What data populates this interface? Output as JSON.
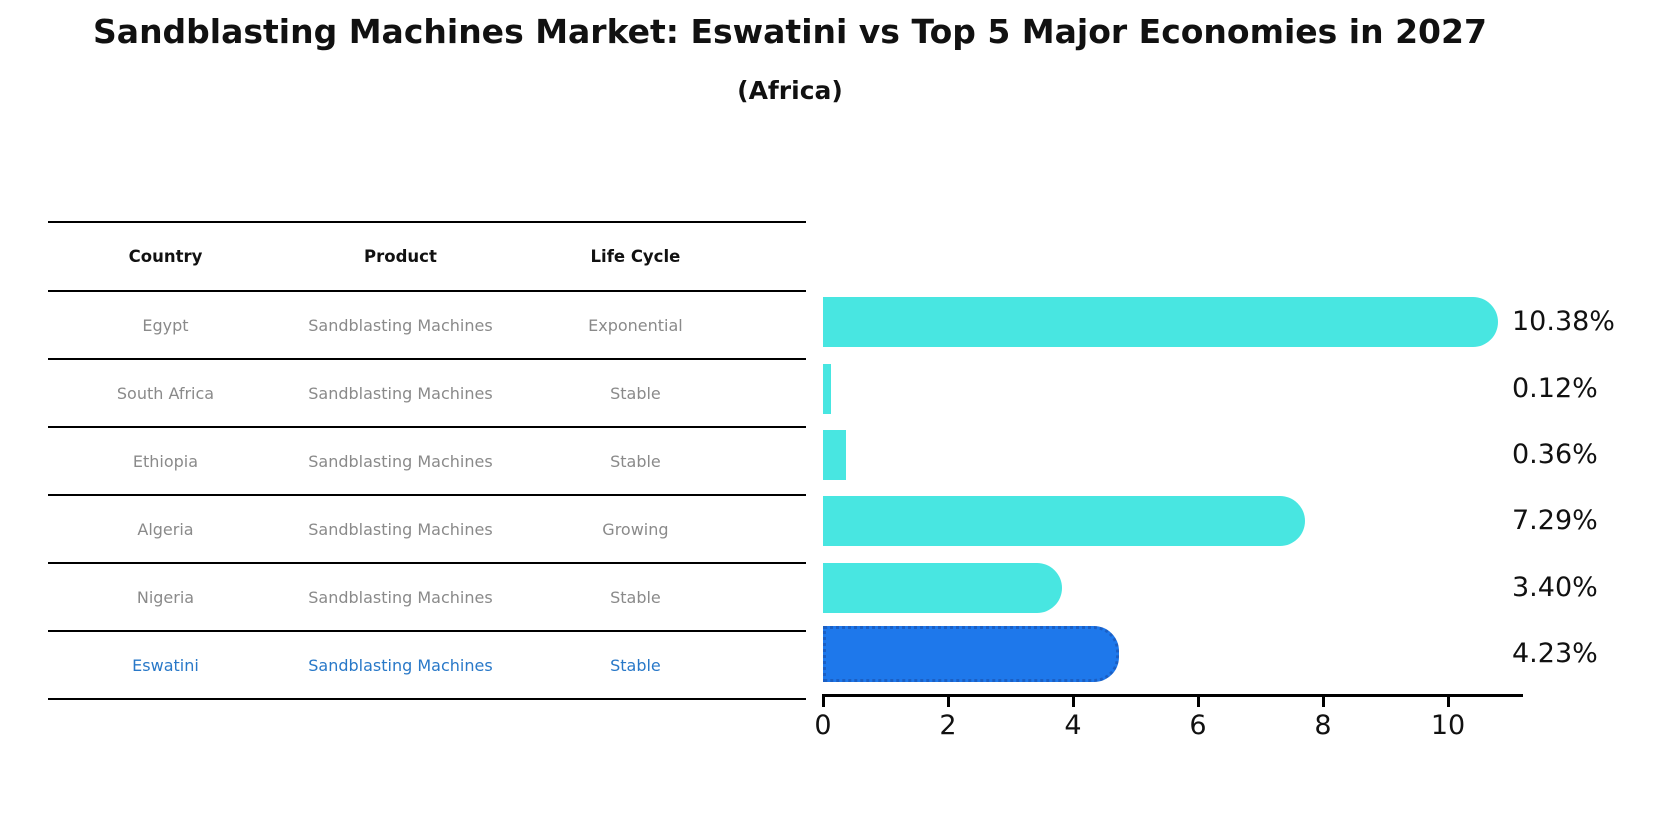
{
  "header": {
    "title": "Sandblasting Machines Market: Eswatini vs Top 5 Major Economies in 2027",
    "subtitle": "(Africa)"
  },
  "table": {
    "columns": [
      "Country",
      "Product",
      "Life Cycle"
    ],
    "rows": [
      {
        "country": "Egypt",
        "product": "Sandblasting Machines",
        "life_cycle": "Exponential",
        "highlight": false
      },
      {
        "country": "South Africa",
        "product": "Sandblasting Machines",
        "life_cycle": "Stable",
        "highlight": false
      },
      {
        "country": "Ethiopia",
        "product": "Sandblasting Machines",
        "life_cycle": "Stable",
        "highlight": false
      },
      {
        "country": "Algeria",
        "product": "Sandblasting Machines",
        "life_cycle": "Growing",
        "highlight": false
      },
      {
        "country": "Nigeria",
        "product": "Sandblasting Machines",
        "life_cycle": "Stable",
        "highlight": false
      },
      {
        "country": "Eswatini",
        "product": "Sandblasting Machines",
        "life_cycle": "Stable",
        "highlight": true
      }
    ]
  },
  "chart_data": {
    "type": "bar",
    "orientation": "horizontal",
    "title": "Sandblasting Machines Market: Eswatini vs Top 5 Major Economies in 2027",
    "subtitle": "(Africa)",
    "categories": [
      "Egypt",
      "South Africa",
      "Ethiopia",
      "Algeria",
      "Nigeria",
      "Eswatini"
    ],
    "values": [
      10.38,
      0.12,
      0.36,
      7.29,
      3.4,
      4.23
    ],
    "value_labels": [
      "10.38%",
      "0.12%",
      "0.36%",
      "7.29%",
      "3.40%",
      "4.23%"
    ],
    "x_ticks": [
      0,
      2,
      4,
      6,
      8,
      10
    ],
    "xlim": [
      0,
      11.2
    ],
    "xlabel": "",
    "ylabel": "",
    "grid": false,
    "legend": "none",
    "highlighted_category": "Eswatini",
    "units": "percent"
  },
  "colors": {
    "bar_turquoise": "#48e6e1",
    "highlight_bar_blue": "#1e78eb",
    "highlight_border_blue": "#1b5fc4",
    "highlight_text_blue": "#2878c8",
    "table_text_gray": "#8a8a8a",
    "text_black": "#111111"
  }
}
